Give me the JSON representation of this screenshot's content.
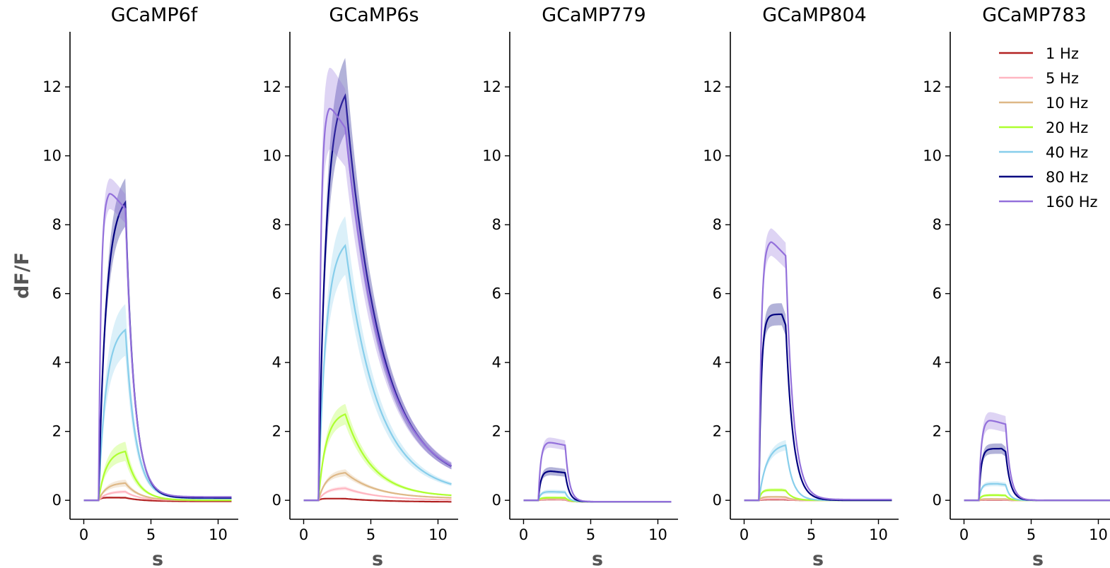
{
  "chart_data": {
    "type": "line",
    "ylabel": "dF/F",
    "xlabel": "s",
    "xlim": [
      -0.5,
      11.5
    ],
    "ylim": [
      -0.55,
      13.6
    ],
    "xticks": [
      0,
      5,
      10
    ],
    "yticks": [
      0,
      2,
      4,
      6,
      8,
      10,
      12
    ],
    "grid": false,
    "legend_position": "top-right (last panel)",
    "stimulus": {
      "onset_s": 1.1
    },
    "series_styles": [
      {
        "name": "1 Hz",
        "color": "#b22222"
      },
      {
        "name": "5 Hz",
        "color": "#ffb6c1"
      },
      {
        "name": "10 Hz",
        "color": "#deb887"
      },
      {
        "name": "20 Hz",
        "color": "#adff2f"
      },
      {
        "name": "40 Hz",
        "color": "#87ceeb"
      },
      {
        "name": "80 Hz",
        "color": "#000080"
      },
      {
        "name": "160 Hz",
        "color": "#9370db"
      }
    ],
    "panels": [
      {
        "title": "GCaMP6f",
        "series": [
          {
            "name": "1 Hz",
            "peak": 0.08,
            "peak_time": 1.6,
            "end_s": 3.1,
            "decay_tau": 1.2,
            "band": 0.03,
            "baseline_end": -0.03
          },
          {
            "name": "5 Hz",
            "peak": 0.25,
            "peak_time": 3.0,
            "end_s": 3.1,
            "decay_tau": 1.0,
            "band": 0.05,
            "baseline_end": 0.0
          },
          {
            "name": "10 Hz",
            "peak": 0.5,
            "peak_time": 3.0,
            "end_s": 3.1,
            "decay_tau": 1.0,
            "band": 0.1,
            "baseline_end": 0.0
          },
          {
            "name": "20 Hz",
            "peak": 1.42,
            "peak_time": 3.0,
            "end_s": 3.1,
            "decay_tau": 0.9,
            "band": 0.28,
            "baseline_end": 0.0
          },
          {
            "name": "40 Hz",
            "peak": 4.95,
            "peak_time": 3.0,
            "end_s": 3.1,
            "decay_tau": 0.75,
            "band": 0.75,
            "baseline_end": 0.05
          },
          {
            "name": "80 Hz",
            "peak": 8.65,
            "peak_time": 3.0,
            "end_s": 3.1,
            "decay_tau": 0.65,
            "band": 0.7,
            "baseline_end": 0.07
          },
          {
            "name": "160 Hz",
            "peak": 9.0,
            "peak_time": 1.9,
            "end_s": 3.1,
            "decay_tau": 0.65,
            "band": 0.45,
            "baseline_end": 0.1
          }
        ]
      },
      {
        "title": "GCaMP6s",
        "series": [
          {
            "name": "1 Hz",
            "peak": 0.05,
            "peak_time": 2.0,
            "end_s": 3.1,
            "decay_tau": 3.0,
            "band": 0.02,
            "baseline_end": -0.05
          },
          {
            "name": "5 Hz",
            "peak": 0.35,
            "peak_time": 3.0,
            "end_s": 3.1,
            "decay_tau": 2.5,
            "band": 0.06,
            "baseline_end": 0.0
          },
          {
            "name": "10 Hz",
            "peak": 0.8,
            "peak_time": 3.0,
            "end_s": 3.1,
            "decay_tau": 2.3,
            "band": 0.1,
            "baseline_end": 0.05
          },
          {
            "name": "20 Hz",
            "peak": 2.5,
            "peak_time": 3.0,
            "end_s": 3.1,
            "decay_tau": 2.0,
            "band": 0.3,
            "baseline_end": 0.1
          },
          {
            "name": "40 Hz",
            "peak": 7.4,
            "peak_time": 3.0,
            "end_s": 3.1,
            "decay_tau": 2.4,
            "band": 0.85,
            "baseline_end": 0.2
          },
          {
            "name": "80 Hz",
            "peak": 11.75,
            "peak_time": 3.0,
            "end_s": 3.1,
            "decay_tau": 2.6,
            "band": 1.1,
            "baseline_end": 0.45
          },
          {
            "name": "160 Hz",
            "peak": 11.5,
            "peak_time": 1.9,
            "end_s": 3.1,
            "decay_tau": 2.7,
            "band": 1.2,
            "baseline_end": 0.45
          }
        ]
      },
      {
        "title": "GCaMP779",
        "series": [
          {
            "name": "1 Hz",
            "peak": 0.02,
            "peak_time": 2.0,
            "end_s": 3.1,
            "decay_tau": 0.3,
            "band": 0.01,
            "baseline_end": -0.04
          },
          {
            "name": "5 Hz",
            "peak": 0.03,
            "peak_time": 2.0,
            "end_s": 3.1,
            "decay_tau": 0.3,
            "band": 0.01,
            "baseline_end": -0.04
          },
          {
            "name": "10 Hz",
            "peak": 0.05,
            "peak_time": 2.0,
            "end_s": 3.1,
            "decay_tau": 0.3,
            "band": 0.02,
            "baseline_end": -0.04
          },
          {
            "name": "20 Hz",
            "peak": 0.08,
            "peak_time": 2.0,
            "end_s": 3.1,
            "decay_tau": 0.3,
            "band": 0.03,
            "baseline_end": -0.04
          },
          {
            "name": "40 Hz",
            "peak": 0.25,
            "peak_time": 2.0,
            "end_s": 3.1,
            "decay_tau": 0.3,
            "band": 0.06,
            "baseline_end": -0.04
          },
          {
            "name": "80 Hz",
            "peak": 0.85,
            "peak_time": 2.0,
            "end_s": 3.1,
            "decay_tau": 0.3,
            "band": 0.12,
            "baseline_end": -0.04
          },
          {
            "name": "160 Hz",
            "peak": 1.7,
            "peak_time": 1.8,
            "end_s": 3.1,
            "decay_tau": 0.3,
            "band": 0.15,
            "baseline_end": -0.04
          }
        ]
      },
      {
        "title": "GCaMP804",
        "series": [
          {
            "name": "1 Hz",
            "peak": 0.02,
            "peak_time": 2.5,
            "end_s": 3.1,
            "decay_tau": 0.5,
            "band": 0.01,
            "baseline_end": 0.0
          },
          {
            "name": "5 Hz",
            "peak": 0.04,
            "peak_time": 2.5,
            "end_s": 3.1,
            "decay_tau": 0.5,
            "band": 0.02,
            "baseline_end": 0.0
          },
          {
            "name": "10 Hz",
            "peak": 0.1,
            "peak_time": 2.5,
            "end_s": 3.1,
            "decay_tau": 0.5,
            "band": 0.03,
            "baseline_end": 0.0
          },
          {
            "name": "20 Hz",
            "peak": 0.3,
            "peak_time": 2.8,
            "end_s": 3.1,
            "decay_tau": 0.5,
            "band": 0.05,
            "baseline_end": 0.0
          },
          {
            "name": "40 Hz",
            "peak": 1.6,
            "peak_time": 3.0,
            "end_s": 3.1,
            "decay_tau": 0.5,
            "band": 0.15,
            "baseline_end": 0.0
          },
          {
            "name": "80 Hz",
            "peak": 5.4,
            "peak_time": 2.8,
            "end_s": 3.1,
            "decay_tau": 0.55,
            "band": 0.32,
            "baseline_end": 0.0
          },
          {
            "name": "160 Hz",
            "peak": 7.55,
            "peak_time": 2.0,
            "end_s": 3.1,
            "decay_tau": 0.55,
            "band": 0.4,
            "baseline_end": 0.02
          }
        ]
      },
      {
        "title": "GCaMP783",
        "series": [
          {
            "name": "1 Hz",
            "peak": 0.01,
            "peak_time": 2.0,
            "end_s": 3.1,
            "decay_tau": 0.3,
            "band": 0.01,
            "baseline_end": 0.0
          },
          {
            "name": "5 Hz",
            "peak": 0.02,
            "peak_time": 2.0,
            "end_s": 3.1,
            "decay_tau": 0.3,
            "band": 0.01,
            "baseline_end": 0.0
          },
          {
            "name": "10 Hz",
            "peak": 0.04,
            "peak_time": 2.0,
            "end_s": 3.1,
            "decay_tau": 0.3,
            "band": 0.02,
            "baseline_end": 0.0
          },
          {
            "name": "20 Hz",
            "peak": 0.15,
            "peak_time": 2.5,
            "end_s": 3.1,
            "decay_tau": 0.3,
            "band": 0.04,
            "baseline_end": 0.0
          },
          {
            "name": "40 Hz",
            "peak": 0.48,
            "peak_time": 2.5,
            "end_s": 3.1,
            "decay_tau": 0.3,
            "band": 0.07,
            "baseline_end": 0.0
          },
          {
            "name": "80 Hz",
            "peak": 1.5,
            "peak_time": 2.8,
            "end_s": 3.1,
            "decay_tau": 0.35,
            "band": 0.15,
            "baseline_end": 0.0
          },
          {
            "name": "160 Hz",
            "peak": 2.35,
            "peak_time": 1.8,
            "end_s": 3.1,
            "decay_tau": 0.35,
            "band": 0.25,
            "baseline_end": 0.0
          }
        ]
      }
    ]
  }
}
